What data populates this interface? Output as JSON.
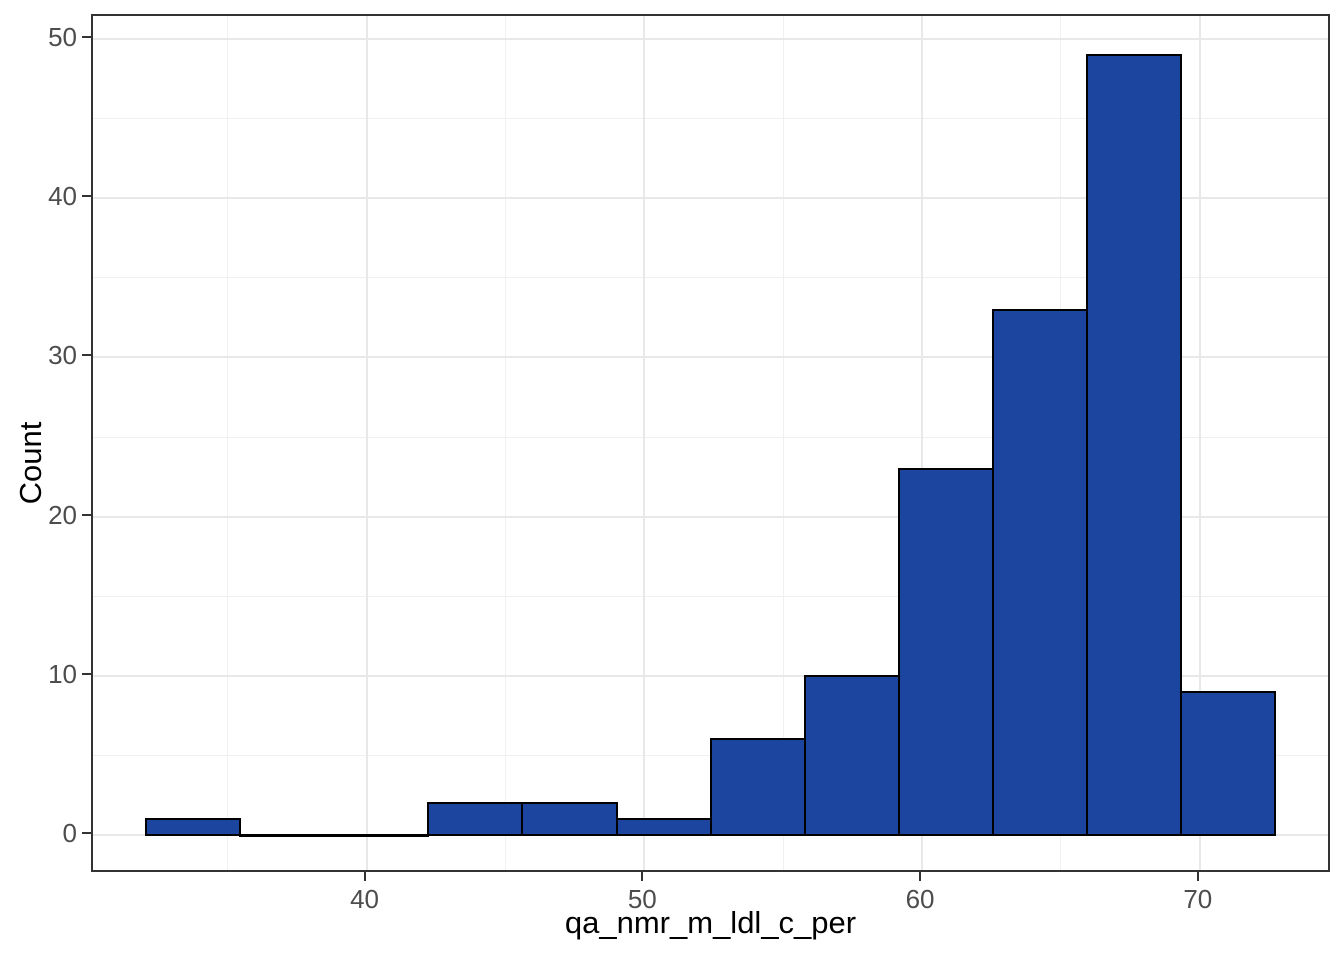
{
  "chart_data": {
    "type": "bar",
    "subtype": "histogram",
    "title": "",
    "xlabel": "qa_nmr_m_ldl_c_per",
    "ylabel": "Count",
    "bin_edges": [
      32.06,
      35.45,
      38.84,
      42.22,
      45.61,
      49.0,
      52.39,
      55.77,
      59.16,
      62.55,
      65.94,
      69.32,
      72.71
    ],
    "counts": [
      1,
      0,
      0,
      2,
      2,
      1,
      6,
      10,
      23,
      33,
      49,
      9
    ],
    "x_major_ticks": [
      40,
      50,
      60,
      70
    ],
    "x_minor_ticks": [
      35,
      45,
      55,
      65
    ],
    "y_major_ticks": [
      0,
      10,
      20,
      30,
      40,
      50
    ],
    "y_minor_ticks": [
      5,
      15,
      25,
      35,
      45
    ],
    "x_tick_labels": [
      "40",
      "50",
      "60",
      "70"
    ],
    "y_tick_labels": [
      "0",
      "10",
      "20",
      "30",
      "40",
      "50"
    ],
    "xlim": [
      30.15,
      74.76
    ],
    "ylim": [
      -2.45,
      51.45
    ],
    "grid": "on",
    "legend": "none",
    "colors": {
      "bar_fill": "#1b459f",
      "bar_stroke": "#000000",
      "grid_major": "#e8e8e8",
      "grid_minor": "#f0f0f0",
      "panel_border": "#333333",
      "tick_mark": "#333333",
      "tick_label": "#4d4d4d",
      "axis_title": "#000000",
      "background": "#ffffff"
    }
  }
}
